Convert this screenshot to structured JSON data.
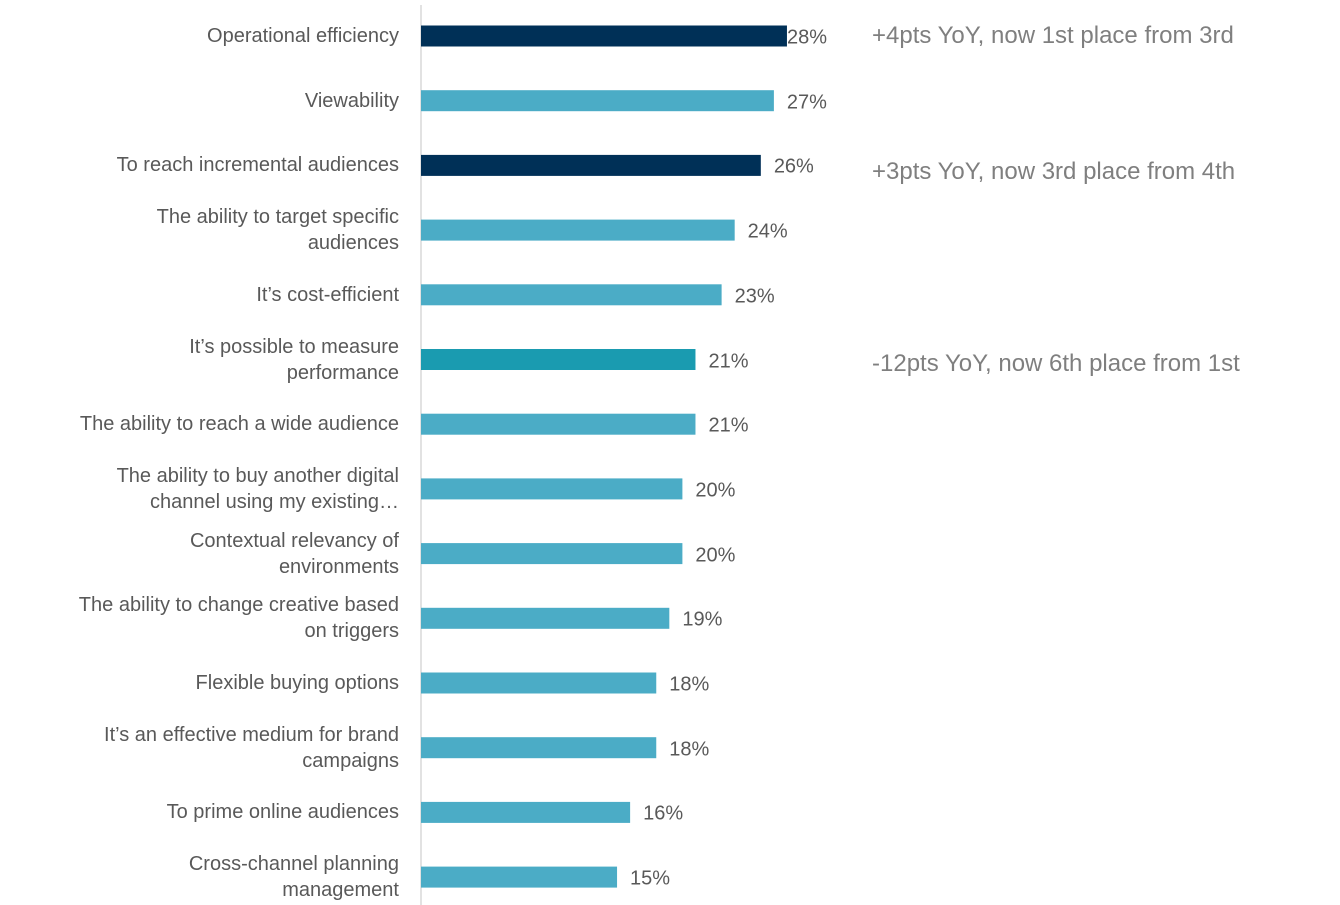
{
  "chart_data": {
    "type": "bar",
    "orientation": "horizontal",
    "categories": [
      "Operational efficiency",
      "Viewability",
      "To reach incremental audiences",
      "The ability to target specific\naudiences",
      "It’s cost-efficient",
      "It’s possible to measure\nperformance",
      "The ability to reach a wide audience",
      "The ability to buy another digital\nchannel using my existing…",
      "Contextual relevancy of\nenvironments",
      "The ability to change creative based\non triggers",
      "Flexible buying options",
      "It’s an effective medium for brand\ncampaigns",
      "To prime online audiences",
      "Cross-channel planning\nmanagement"
    ],
    "values": [
      28,
      27,
      26,
      24,
      23,
      21,
      21,
      20,
      20,
      19,
      18,
      18,
      16,
      15
    ],
    "value_labels": [
      "28%",
      "27%",
      "26%",
      "24%",
      "23%",
      "21%",
      "21%",
      "20%",
      "20%",
      "19%",
      "18%",
      "18%",
      "16%",
      "15%"
    ],
    "colors": [
      "#003057",
      "#4bacc6",
      "#003057",
      "#4bacc6",
      "#4bacc6",
      "#1a9bb0",
      "#4bacc6",
      "#4bacc6",
      "#4bacc6",
      "#4bacc6",
      "#4bacc6",
      "#4bacc6",
      "#4bacc6",
      "#4bacc6"
    ],
    "annotations": [
      "+4pts YoY, now 1st place from 3rd",
      "+3pts YoY, now 3rd place from 4th",
      "-12pts YoY, now 6th place from 1st"
    ]
  }
}
